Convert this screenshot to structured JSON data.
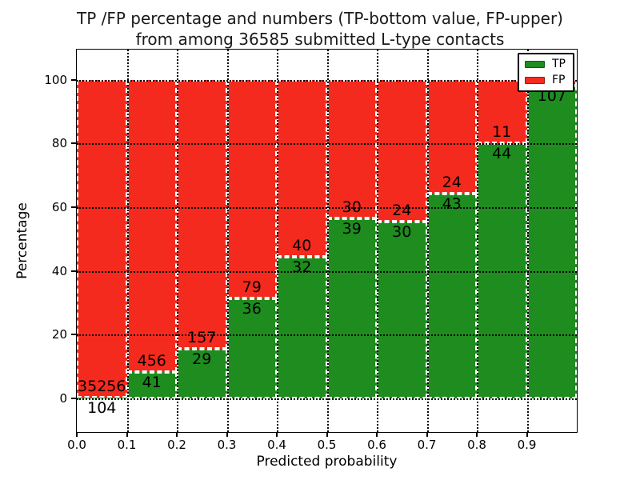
{
  "title": {
    "line1": "TP /FP percentage and numbers (TP-bottom value, FP-upper)",
    "line2": "from among 36585 submitted L-type contacts"
  },
  "axes": {
    "xlabel": "Predicted probability",
    "ylabel": "Percentage"
  },
  "colors": {
    "tp": "#1e8c1e",
    "fp": "#f42a1e",
    "grid": "#000000",
    "bar_edge": "#ffffff",
    "background": "#ffffff"
  },
  "legend": {
    "position": "upper-right",
    "items": [
      {
        "label": "TP",
        "color": "#1e8c1e"
      },
      {
        "label": "FP",
        "color": "#f42a1e"
      }
    ]
  },
  "chart_data": {
    "type": "bar",
    "stacked": true,
    "normalized_to_percent": true,
    "title": "TP /FP percentage and numbers (TP-bottom value, FP-upper) from among 36585 submitted L-type contacts",
    "xlabel": "Predicted probability",
    "ylabel": "Percentage",
    "total_submitted": 36585,
    "xlim": [
      0.0,
      1.0
    ],
    "ylim": [
      -10.6,
      109.5
    ],
    "bin_width": 0.1,
    "bin_starts": [
      0.0,
      0.1,
      0.2,
      0.3,
      0.4,
      0.5,
      0.6,
      0.7,
      0.8,
      0.9
    ],
    "xtick_labels": [
      "0.0",
      "0.1",
      "0.2",
      "0.3",
      "0.4",
      "0.5",
      "0.6",
      "0.7",
      "0.8",
      "0.9"
    ],
    "yticks": [
      0,
      20,
      40,
      60,
      80,
      100
    ],
    "grid": {
      "style": "dotted",
      "color": "#000000",
      "axes": "both"
    },
    "legend_entries": [
      "TP",
      "FP"
    ],
    "series": [
      {
        "name": "TP",
        "color": "#1e8c1e",
        "counts": [
          104,
          41,
          29,
          36,
          32,
          39,
          30,
          43,
          44,
          107
        ],
        "percent": [
          0.29,
          8.25,
          15.59,
          31.3,
          44.44,
          56.52,
          55.56,
          64.18,
          80.0,
          98.2
        ]
      },
      {
        "name": "FP",
        "color": "#f42a1e",
        "counts": [
          35256,
          456,
          157,
          79,
          40,
          30,
          24,
          24,
          11,
          null
        ],
        "percent": [
          99.71,
          91.75,
          84.41,
          68.7,
          55.56,
          43.48,
          44.44,
          35.82,
          20.0,
          1.8
        ]
      }
    ]
  }
}
